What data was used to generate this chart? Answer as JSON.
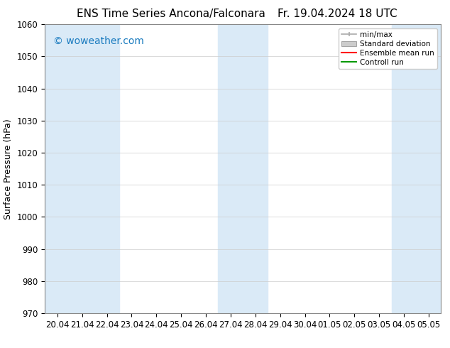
{
  "title_left": "ENS Time Series Ancona/Falconara",
  "title_right": "Fr. 19.04.2024 18 UTC",
  "ylabel": "Surface Pressure (hPa)",
  "ylim": [
    970,
    1060
  ],
  "yticks": [
    970,
    980,
    990,
    1000,
    1010,
    1020,
    1030,
    1040,
    1050,
    1060
  ],
  "xtick_labels": [
    "20.04",
    "21.04",
    "22.04",
    "23.04",
    "24.04",
    "25.04",
    "26.04",
    "27.04",
    "28.04",
    "29.04",
    "30.04",
    "01.05",
    "02.05",
    "03.05",
    "04.05",
    "05.05"
  ],
  "watermark": "© woweather.com",
  "watermark_color": "#1a7bbf",
  "background_color": "#ffffff",
  "plot_bg_color": "#ffffff",
  "shaded_band_color": "#daeaf7",
  "shaded_columns": [
    0,
    1,
    2,
    7,
    8,
    14,
    15
  ],
  "legend_labels": [
    "min/max",
    "Standard deviation",
    "Ensemble mean run",
    "Controll run"
  ],
  "legend_colors_line": [
    "#aaaaaa",
    "#bbbbbb",
    "#ff0000",
    "#00aa00"
  ],
  "title_fontsize": 11,
  "axis_label_fontsize": 9,
  "tick_fontsize": 8.5,
  "watermark_fontsize": 10
}
